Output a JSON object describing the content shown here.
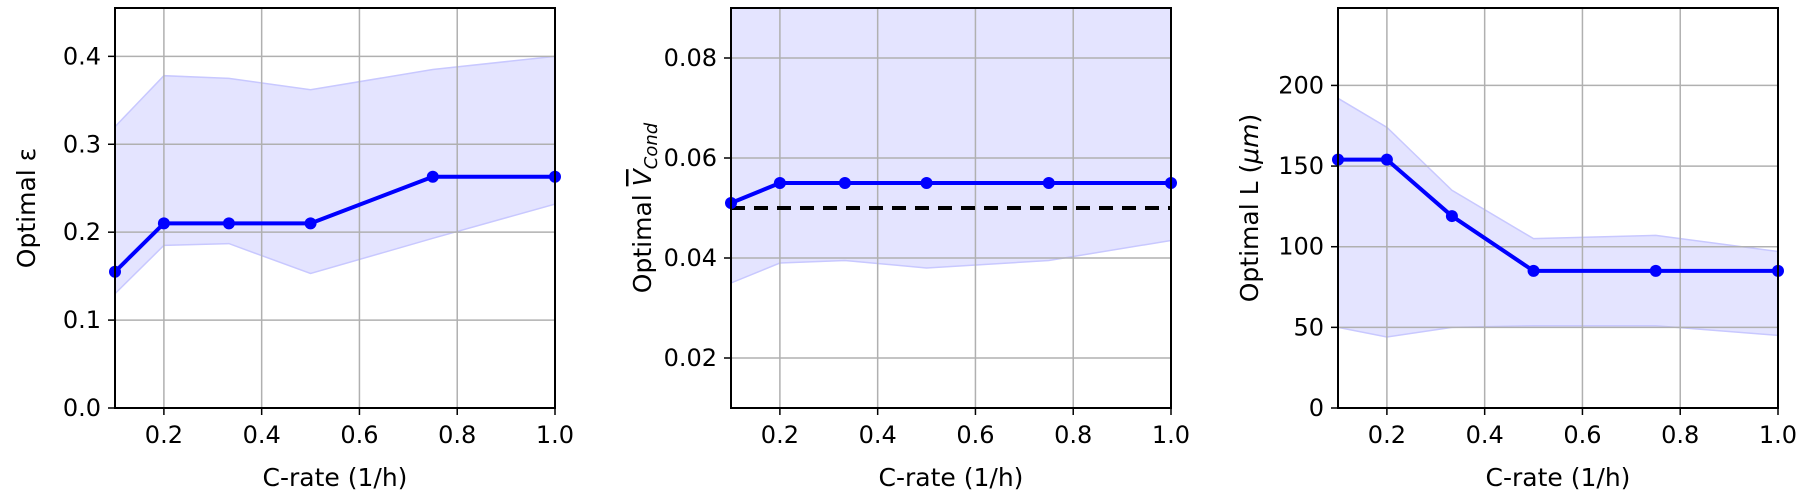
{
  "colors": {
    "line": "#0000ff",
    "band": "#e4e4ff",
    "band_edge": "#c8c8ff",
    "grid": "#b0b0b0",
    "reference": "#000000"
  },
  "chart_data": [
    {
      "type": "line",
      "xlabel": "C-rate (1/h)",
      "ylabel": "Optimal ε",
      "xlim": [
        0.1,
        1.0
      ],
      "ylim": [
        0.0,
        0.455
      ],
      "xticks": [
        0.2,
        0.4,
        0.6,
        0.8,
        1.0
      ],
      "xtick_labels": [
        "0.2",
        "0.4",
        "0.6",
        "0.8",
        "1.0"
      ],
      "yticks": [
        0.0,
        0.1,
        0.2,
        0.3,
        0.4
      ],
      "ytick_labels": [
        "0.0",
        "0.1",
        "0.2",
        "0.3",
        "0.4"
      ],
      "grid": true,
      "x": [
        0.1,
        0.2,
        0.333,
        0.5,
        0.75,
        1.0
      ],
      "y": [
        0.155,
        0.21,
        0.21,
        0.21,
        0.263,
        0.263
      ],
      "band": {
        "x": [
          0.1,
          0.2,
          0.333,
          0.5,
          0.75,
          1.0
        ],
        "lower": [
          0.13,
          0.185,
          0.187,
          0.153,
          0.193,
          0.232
        ],
        "upper": [
          0.32,
          0.378,
          0.375,
          0.362,
          0.385,
          0.4
        ]
      }
    },
    {
      "type": "line",
      "xlabel": "C-rate (1/h)",
      "ylabel_main": "Optimal ",
      "ylabel_var": "V",
      "ylabel_sub": "Cond",
      "xlim": [
        0.1,
        1.0
      ],
      "ylim": [
        0.01,
        0.09
      ],
      "xticks": [
        0.2,
        0.4,
        0.6,
        0.8,
        1.0
      ],
      "xtick_labels": [
        "0.2",
        "0.4",
        "0.6",
        "0.8",
        "1.0"
      ],
      "yticks": [
        0.02,
        0.04,
        0.06,
        0.08
      ],
      "ytick_labels": [
        "0.02",
        "0.04",
        "0.06",
        "0.08"
      ],
      "grid": true,
      "x": [
        0.1,
        0.2,
        0.333,
        0.5,
        0.75,
        1.0
      ],
      "y": [
        0.051,
        0.055,
        0.055,
        0.055,
        0.055,
        0.055
      ],
      "band": {
        "x": [
          0.1,
          0.2,
          0.333,
          0.5,
          0.75,
          1.0
        ],
        "lower": [
          0.035,
          0.039,
          0.0395,
          0.038,
          0.0395,
          0.0435
        ],
        "upper": [
          0.09,
          0.09,
          0.09,
          0.09,
          0.09,
          0.09
        ]
      },
      "reference_line": {
        "y": 0.05,
        "style": "dashed"
      }
    },
    {
      "type": "line",
      "xlabel": "C-rate (1/h)",
      "ylabel_main": "Optimal L (",
      "ylabel_unit": "μm",
      "ylabel_close": ")",
      "xlim": [
        0.1,
        1.0
      ],
      "ylim": [
        0,
        248
      ],
      "xticks": [
        0.2,
        0.4,
        0.6,
        0.8,
        1.0
      ],
      "xtick_labels": [
        "0.2",
        "0.4",
        "0.6",
        "0.8",
        "1.0"
      ],
      "yticks": [
        0,
        50,
        100,
        150,
        200
      ],
      "ytick_labels": [
        "0",
        "50",
        "100",
        "150",
        "200"
      ],
      "grid": true,
      "x": [
        0.1,
        0.2,
        0.333,
        0.5,
        0.75,
        1.0
      ],
      "y": [
        154,
        154,
        119,
        85,
        85,
        85
      ],
      "band": {
        "x": [
          0.1,
          0.2,
          0.333,
          0.5,
          0.75,
          1.0
        ],
        "lower": [
          50,
          44,
          50,
          51,
          51,
          45
        ],
        "upper": [
          192,
          174,
          135,
          105,
          107,
          97
        ]
      }
    }
  ]
}
